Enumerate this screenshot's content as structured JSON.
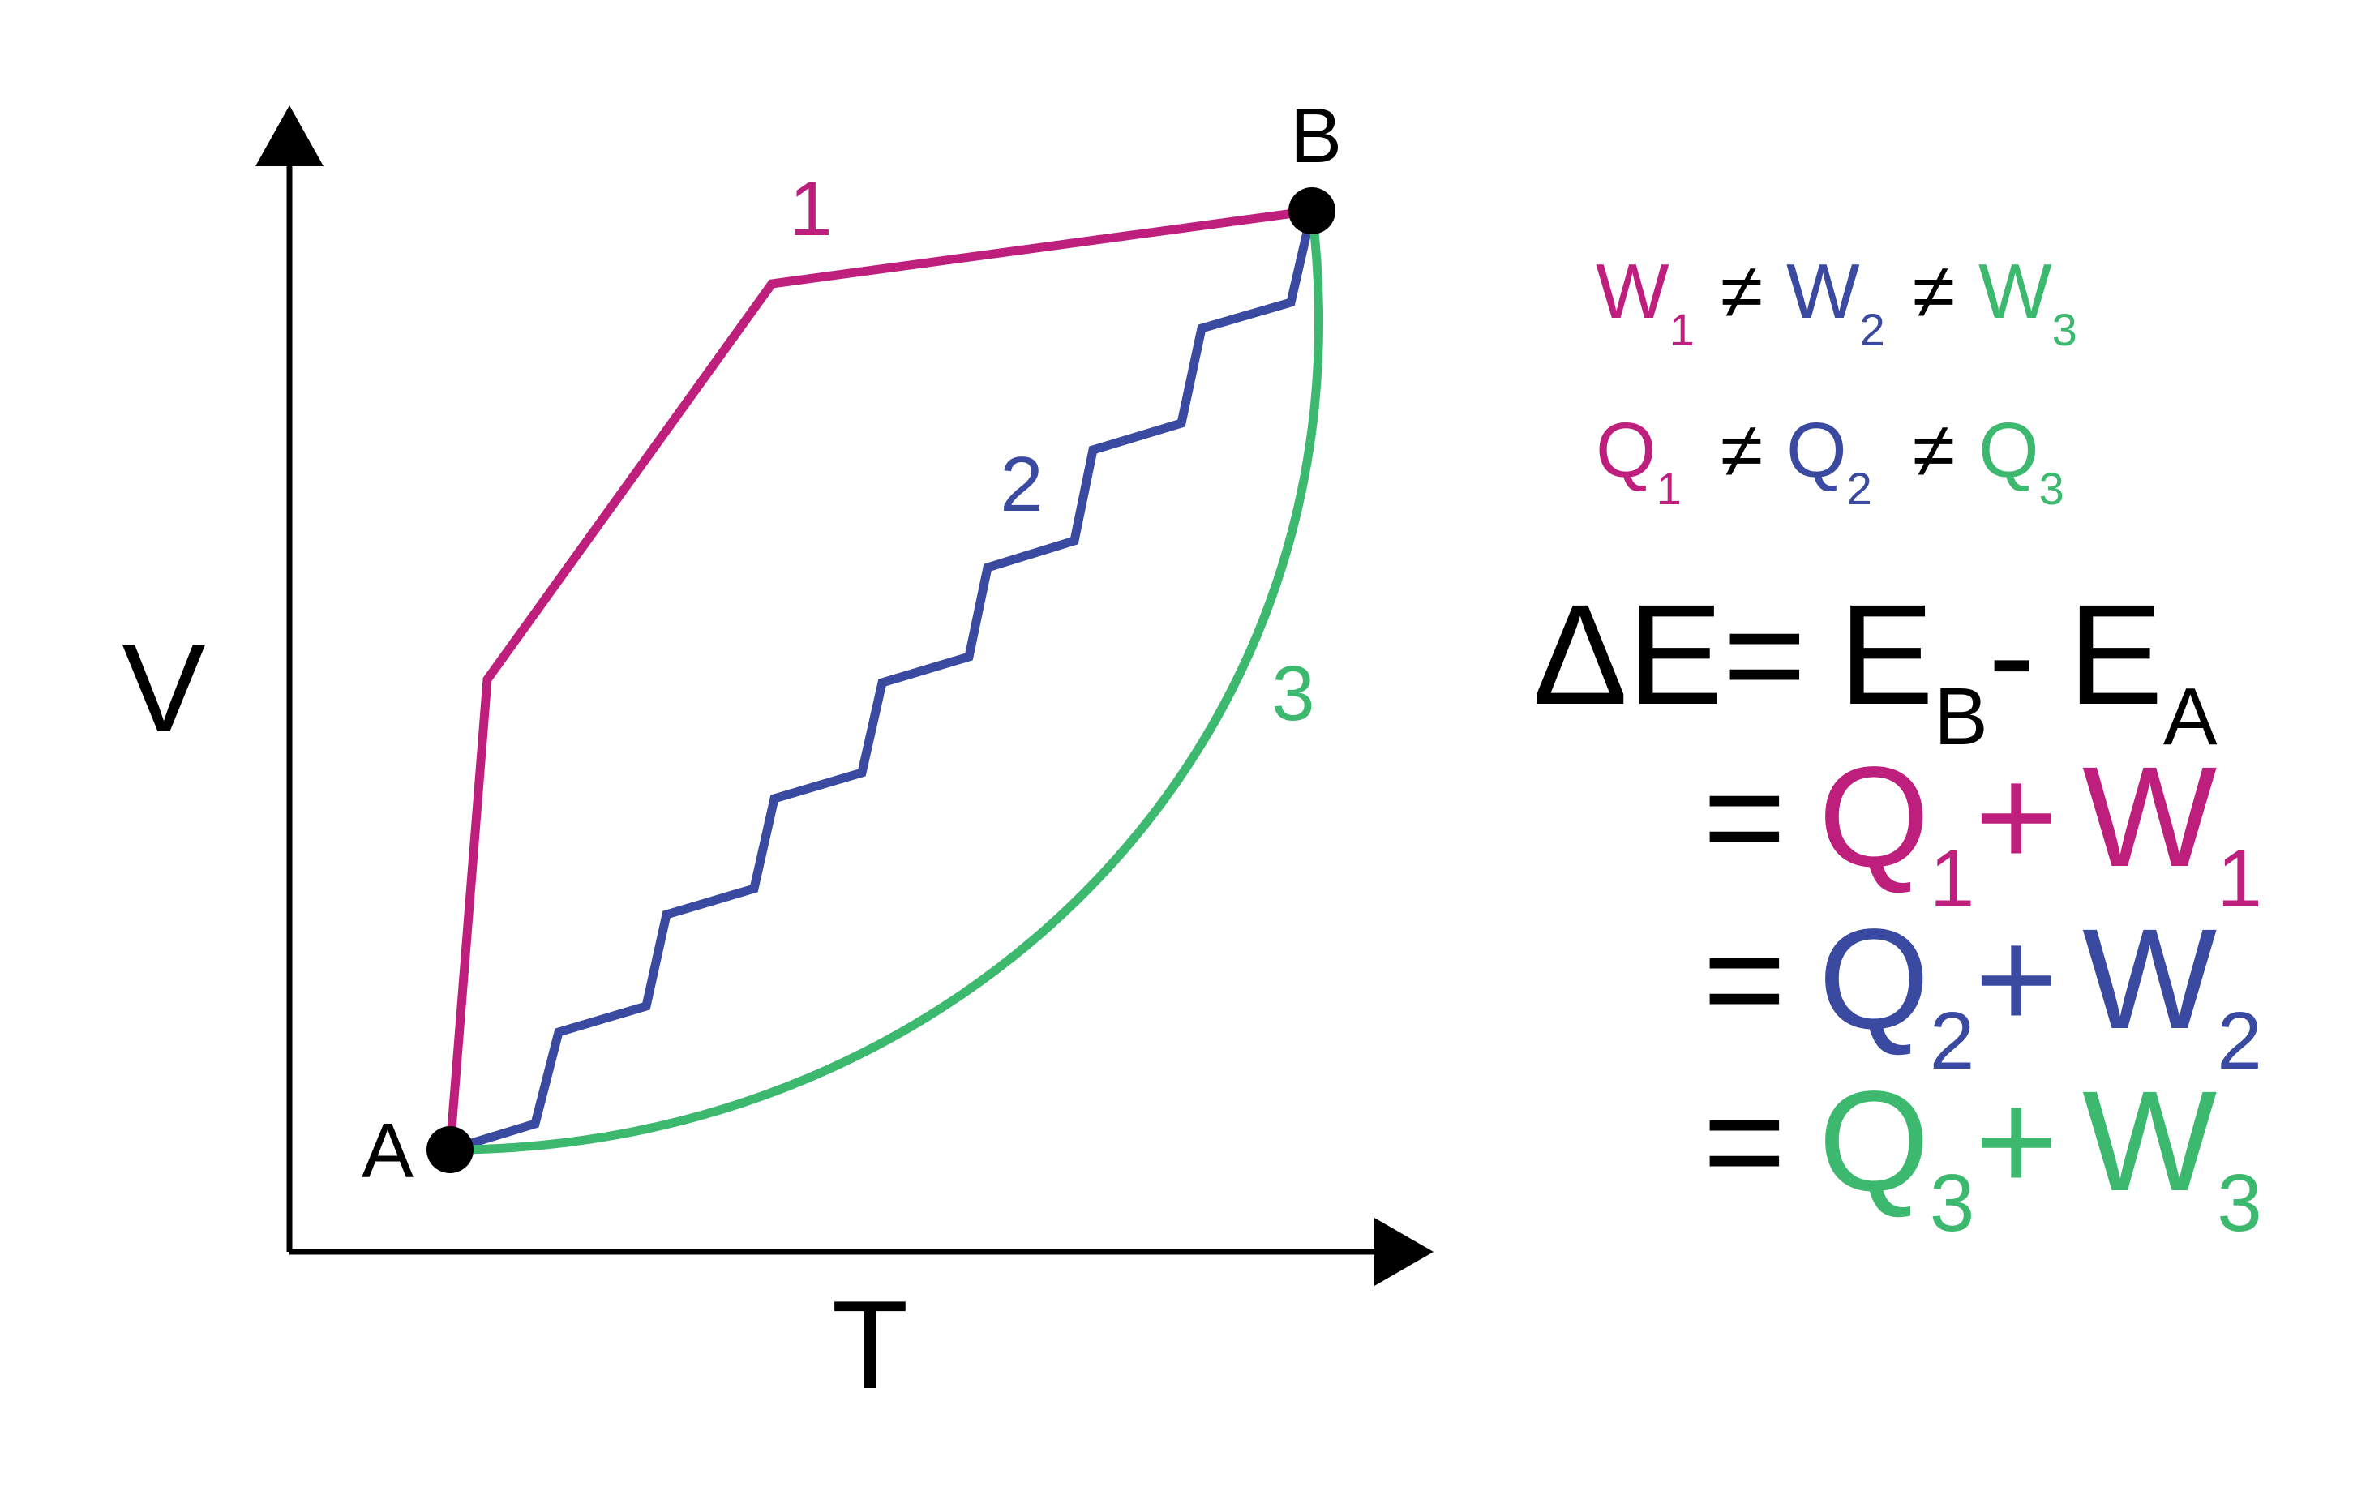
{
  "axes": {
    "x_label": "T",
    "y_label": "V"
  },
  "points": {
    "a": "A",
    "b": "B"
  },
  "paths": [
    {
      "label": "1",
      "color": "#BE1E7C"
    },
    {
      "label": "2",
      "color": "#3A4AA0"
    },
    {
      "label": "3",
      "color": "#3DB86F"
    }
  ],
  "ineq": {
    "w": [
      "W",
      "W",
      "W"
    ],
    "q": [
      "Q",
      "Q",
      "Q"
    ],
    "subs": [
      "1",
      "2",
      "3"
    ],
    "ne": "≠"
  },
  "energy": {
    "delta_e": "ΔE",
    "eq": "=",
    "minus": "-",
    "plus": "+",
    "e": "E",
    "sub_b": "B",
    "sub_a": "A"
  }
}
